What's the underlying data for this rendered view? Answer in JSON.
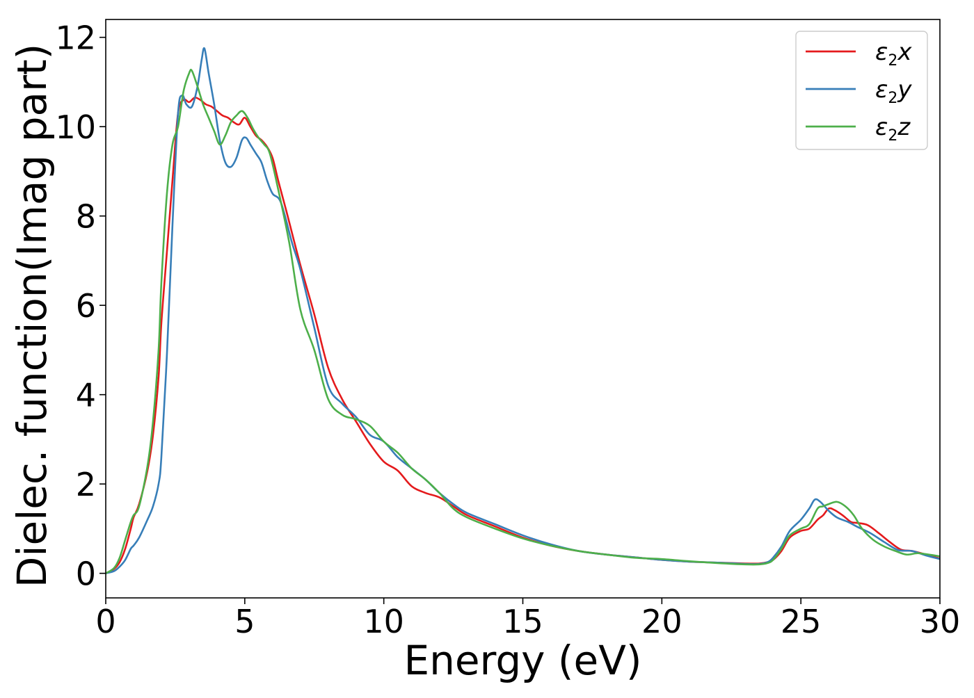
{
  "chart_data": {
    "type": "line",
    "title": "",
    "xlabel": "Energy (eV)",
    "ylabel": "Dielec. function(Imag part)",
    "xlim": [
      0,
      30
    ],
    "ylim": [
      -0.55,
      12.4
    ],
    "xticks": [
      0,
      5,
      10,
      15,
      20,
      25,
      30
    ],
    "yticks": [
      0,
      2,
      4,
      6,
      8,
      10,
      12
    ],
    "grid": false,
    "legend_position": "top-right",
    "series": [
      {
        "name": "ε2x",
        "name_base": "ε",
        "name_sub": "2",
        "name_suffix": "x",
        "color": "#e41a1c",
        "x": [
          0,
          0.3,
          0.5,
          0.7,
          0.9,
          1.0,
          1.2,
          1.5,
          1.7,
          1.9,
          2.0,
          2.2,
          2.4,
          2.6,
          2.8,
          3.0,
          3.2,
          3.4,
          3.6,
          3.8,
          4.0,
          4.2,
          4.4,
          4.6,
          4.8,
          5.0,
          5.2,
          5.4,
          5.6,
          5.8,
          6.0,
          6.2,
          6.5,
          7.0,
          7.5,
          8.0,
          8.5,
          9.0,
          9.5,
          10.0,
          10.5,
          11.0,
          11.5,
          12.0,
          12.5,
          13.0,
          14.0,
          15.0,
          16.0,
          17.0,
          18.0,
          19.0,
          20.0,
          21.0,
          22.0,
          23.0,
          23.5,
          23.8,
          24.0,
          24.3,
          24.6,
          25.0,
          25.3,
          25.6,
          25.8,
          26.0,
          26.2,
          26.5,
          26.8,
          27.0,
          27.4,
          27.8,
          28.2,
          28.6,
          29.0,
          29.5,
          30.0
        ],
        "y": [
          0,
          0.1,
          0.25,
          0.55,
          1.0,
          1.25,
          1.55,
          2.3,
          3.1,
          4.4,
          5.6,
          7.2,
          8.8,
          10.3,
          10.6,
          10.55,
          10.65,
          10.6,
          10.5,
          10.45,
          10.35,
          10.25,
          10.2,
          10.1,
          10.05,
          10.2,
          10.0,
          9.8,
          9.7,
          9.55,
          9.3,
          8.8,
          8.1,
          6.9,
          5.8,
          4.6,
          3.9,
          3.4,
          2.9,
          2.5,
          2.3,
          1.95,
          1.8,
          1.7,
          1.5,
          1.3,
          1.05,
          0.8,
          0.62,
          0.5,
          0.42,
          0.36,
          0.3,
          0.26,
          0.24,
          0.22,
          0.22,
          0.25,
          0.3,
          0.5,
          0.8,
          0.95,
          1.0,
          1.2,
          1.3,
          1.45,
          1.42,
          1.3,
          1.15,
          1.13,
          1.08,
          0.9,
          0.7,
          0.53,
          0.5,
          0.42,
          0.33
        ]
      },
      {
        "name": "ε2y",
        "name_base": "ε",
        "name_sub": "2",
        "name_suffix": "y",
        "color": "#377eb8",
        "x": [
          0,
          0.3,
          0.5,
          0.7,
          0.9,
          1.0,
          1.2,
          1.5,
          1.7,
          1.9,
          2.0,
          2.2,
          2.4,
          2.6,
          2.75,
          2.9,
          3.1,
          3.3,
          3.45,
          3.55,
          3.7,
          3.9,
          4.1,
          4.3,
          4.5,
          4.7,
          4.9,
          5.05,
          5.2,
          5.4,
          5.6,
          5.8,
          6.0,
          6.3,
          6.7,
          7.0,
          7.5,
          8.0,
          8.5,
          9.0,
          9.5,
          10.0,
          10.5,
          11.0,
          11.5,
          12.0,
          12.5,
          13.0,
          14.0,
          15.0,
          16.0,
          17.0,
          18.0,
          19.0,
          20.0,
          21.0,
          22.0,
          23.0,
          23.5,
          23.8,
          24.0,
          24.3,
          24.6,
          25.0,
          25.3,
          25.5,
          25.7,
          26.0,
          26.3,
          26.7,
          27.0,
          27.5,
          28.0,
          28.5,
          29.0,
          29.5,
          30.0
        ],
        "y": [
          0,
          0.05,
          0.15,
          0.3,
          0.55,
          0.62,
          0.8,
          1.2,
          1.5,
          2.0,
          2.6,
          4.9,
          7.8,
          10.3,
          10.7,
          10.5,
          10.45,
          10.9,
          11.5,
          11.75,
          11.2,
          10.5,
          9.7,
          9.2,
          9.1,
          9.3,
          9.7,
          9.75,
          9.6,
          9.4,
          9.2,
          8.8,
          8.5,
          8.3,
          7.4,
          6.8,
          5.5,
          4.2,
          3.8,
          3.5,
          3.1,
          2.95,
          2.6,
          2.35,
          2.1,
          1.8,
          1.55,
          1.35,
          1.1,
          0.85,
          0.65,
          0.5,
          0.42,
          0.36,
          0.3,
          0.26,
          0.24,
          0.21,
          0.21,
          0.25,
          0.35,
          0.6,
          0.95,
          1.2,
          1.45,
          1.65,
          1.6,
          1.4,
          1.25,
          1.15,
          1.05,
          0.9,
          0.7,
          0.52,
          0.5,
          0.4,
          0.32
        ]
      },
      {
        "name": "ε2z",
        "name_base": "ε",
        "name_sub": "2",
        "name_suffix": "z",
        "color": "#4daf4a",
        "x": [
          0,
          0.3,
          0.5,
          0.7,
          0.9,
          1.0,
          1.2,
          1.5,
          1.7,
          1.9,
          2.0,
          2.2,
          2.4,
          2.6,
          2.8,
          3.0,
          3.1,
          3.3,
          3.5,
          3.7,
          3.9,
          4.1,
          4.3,
          4.5,
          4.7,
          4.9,
          5.1,
          5.3,
          5.5,
          5.7,
          5.9,
          6.2,
          6.6,
          7.0,
          7.5,
          8.0,
          8.5,
          9.0,
          9.5,
          10.0,
          10.5,
          11.0,
          11.5,
          12.0,
          12.5,
          13.0,
          14.0,
          15.0,
          16.0,
          17.0,
          18.0,
          19.0,
          20.0,
          21.0,
          22.0,
          23.0,
          23.5,
          23.8,
          24.0,
          24.3,
          24.6,
          25.0,
          25.3,
          25.6,
          25.8,
          26.0,
          26.3,
          26.6,
          26.9,
          27.2,
          27.6,
          28.0,
          28.4,
          28.8,
          29.2,
          29.6,
          30.0
        ],
        "y": [
          0,
          0.12,
          0.35,
          0.75,
          1.15,
          1.3,
          1.5,
          2.4,
          3.4,
          5.0,
          6.5,
          8.5,
          9.6,
          10.0,
          10.8,
          11.2,
          11.25,
          10.9,
          10.5,
          10.2,
          9.9,
          9.6,
          9.8,
          10.1,
          10.25,
          10.35,
          10.2,
          9.95,
          9.75,
          9.6,
          9.4,
          8.6,
          7.4,
          5.9,
          5.0,
          3.9,
          3.55,
          3.45,
          3.3,
          2.95,
          2.7,
          2.35,
          2.1,
          1.8,
          1.45,
          1.25,
          1.0,
          0.78,
          0.62,
          0.5,
          0.42,
          0.35,
          0.32,
          0.27,
          0.23,
          0.2,
          0.2,
          0.23,
          0.3,
          0.55,
          0.85,
          1.0,
          1.1,
          1.45,
          1.5,
          1.55,
          1.6,
          1.5,
          1.3,
          1.0,
          0.75,
          0.6,
          0.5,
          0.42,
          0.45,
          0.42,
          0.38
        ]
      }
    ]
  }
}
